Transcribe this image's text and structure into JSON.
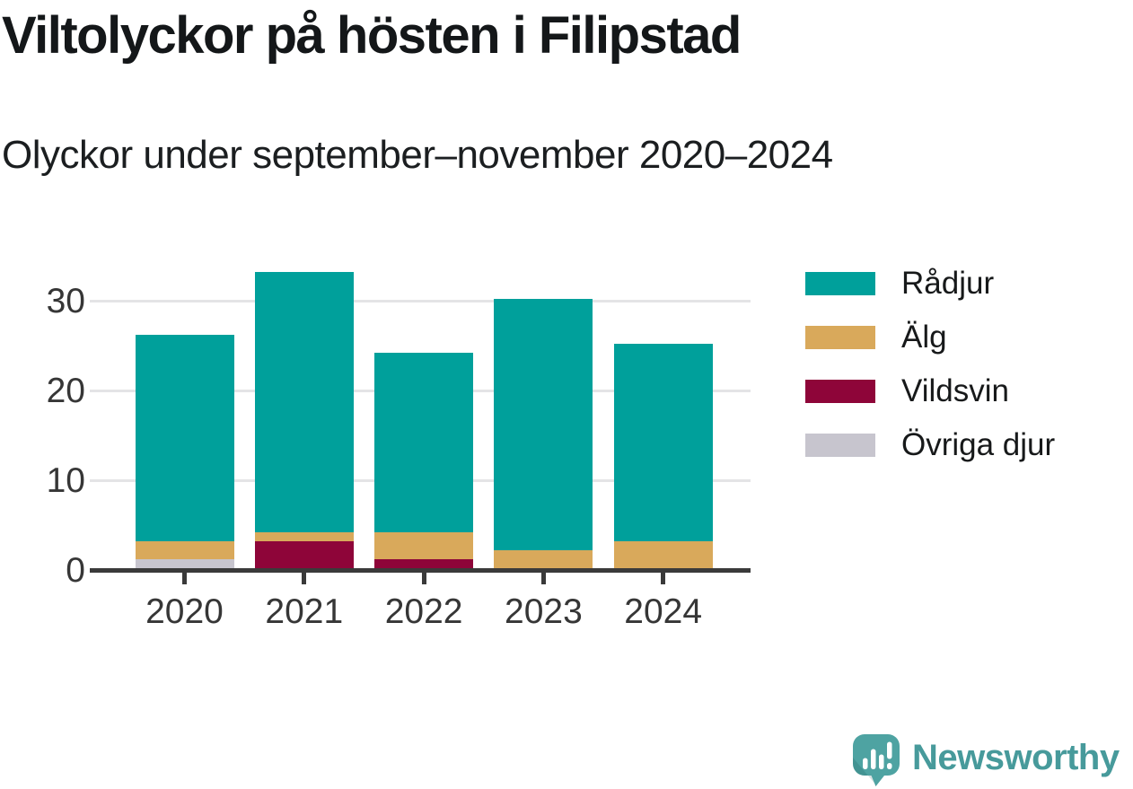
{
  "title": "Viltolyckor på hösten i Filipstad",
  "subtitle": "Olyckor under september–november 2020–2024",
  "chart_data": {
    "type": "bar",
    "stacked": true,
    "categories": [
      "2020",
      "2021",
      "2022",
      "2023",
      "2024"
    ],
    "series": [
      {
        "name": "Rådjur",
        "color": "#00a09b",
        "values": [
          23,
          29,
          20,
          28,
          22
        ]
      },
      {
        "name": "Älg",
        "color": "#d9a95b",
        "values": [
          2,
          1,
          3,
          2,
          3
        ]
      },
      {
        "name": "Vildsvin",
        "color": "#8e0539",
        "values": [
          0,
          3,
          1,
          0,
          0
        ]
      },
      {
        "name": "Övriga djur",
        "color": "#c7c5ce",
        "values": [
          1,
          0,
          0,
          0,
          0
        ]
      }
    ],
    "totals": [
      26,
      33,
      24,
      30,
      25
    ],
    "yticks": [
      0,
      10,
      20,
      30
    ],
    "ylim": [
      0,
      33.5
    ],
    "xlabel": "",
    "ylabel": "",
    "grid": "horizontal",
    "legend_position": "right",
    "stack_order_bottom_to_top": [
      "Övriga djur",
      "Vildsvin",
      "Älg",
      "Rådjur"
    ]
  },
  "colors": {
    "grid": "#e4e4e6",
    "axis": "#3a3a3a",
    "tick_label": "#363636",
    "title_text": "#141719",
    "legend_text": "#17191a",
    "logo": "#479a9b"
  },
  "logo": {
    "text": "Newsworthy",
    "icon": "speech-bubble-bar-chart-exclamation",
    "color": "#479a9b",
    "icon_fill": "#4ea3a2"
  }
}
